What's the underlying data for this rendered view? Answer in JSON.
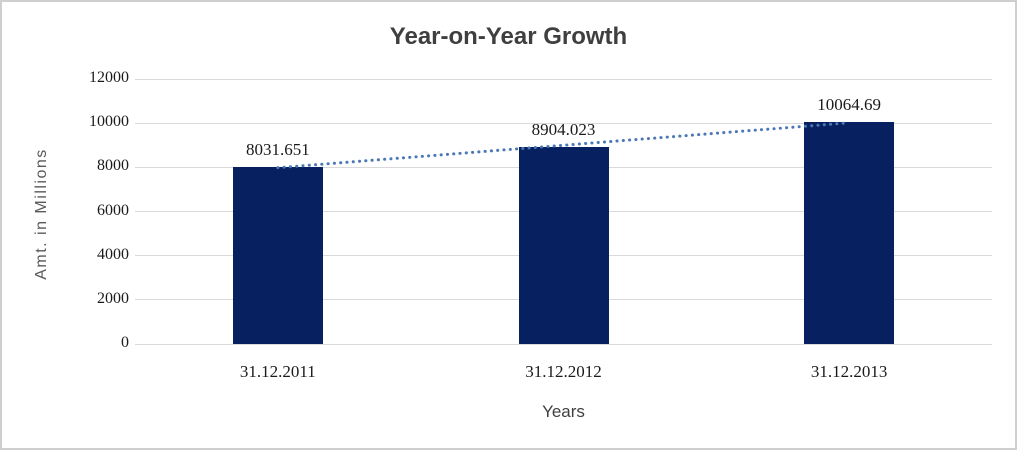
{
  "chart_data": {
    "type": "bar",
    "title": "Year-on-Year Growth",
    "categories": [
      "31.12.2011",
      "31.12.2012",
      "31.12.2013"
    ],
    "values": [
      8031.651,
      8904.023,
      10064.69
    ],
    "data_labels": [
      "8031.651",
      "8904.023",
      "10064.69"
    ],
    "xlabel": "Years",
    "ylabel": "Amt. in Millions",
    "ylim": [
      0,
      12000
    ],
    "ytick_step": 2000,
    "grid": "horizontal",
    "legend": "none",
    "trendline": {
      "type": "linear",
      "style": "dotted",
      "color": "#4a77b5"
    },
    "colors": {
      "bar": "#072160",
      "gridline": "#d9d9d9",
      "title_text": "#3f3f3f",
      "axis_title_text": "#595959",
      "tick_text": "#1a1a1a",
      "frame_border": "#cfcfcf"
    }
  }
}
